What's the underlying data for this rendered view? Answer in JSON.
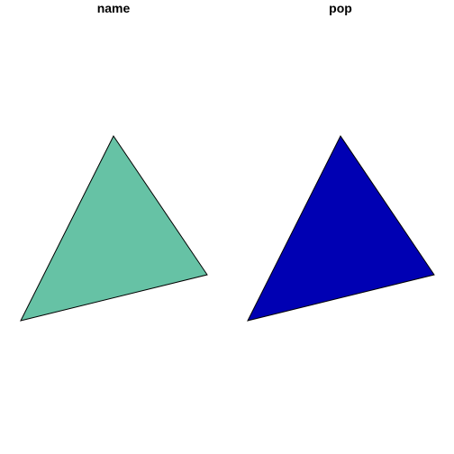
{
  "panels": [
    {
      "title": "name",
      "fill": "#66c2a5",
      "stroke": "#000000"
    },
    {
      "title": "pop",
      "fill": "#0000b3",
      "stroke": "#000000"
    }
  ]
}
